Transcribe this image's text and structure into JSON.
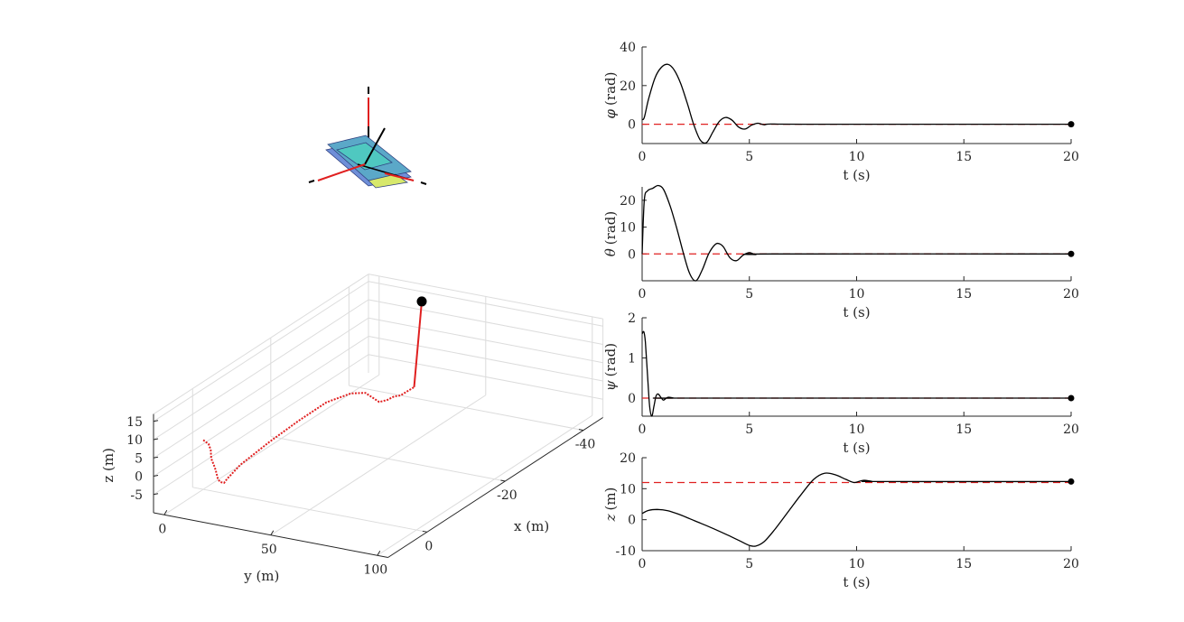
{
  "chart_data": [
    {
      "type": "line",
      "id": "phi",
      "ylabel_symbol": "φ",
      "ylabel_unit": "(rad)",
      "xlabel": "t (s)",
      "xlim": [
        0,
        20
      ],
      "ylim": [
        -10,
        40
      ],
      "xticks": [
        0,
        5,
        10,
        15,
        20
      ],
      "yticks": [
        0,
        20,
        40
      ],
      "reference": 0,
      "end_point": [
        20,
        0
      ],
      "series": [
        {
          "name": "phi",
          "x": [
            0,
            0.1,
            0.3,
            0.6,
            0.9,
            1.2,
            1.5,
            1.8,
            2.1,
            2.4,
            2.7,
            3.0,
            3.3,
            3.6,
            3.9,
            4.2,
            4.5,
            4.8,
            5.1,
            5.4,
            5.7,
            6.0,
            8,
            20
          ],
          "y": [
            2.5,
            3.5,
            13,
            24,
            29.5,
            31,
            28,
            21,
            11,
            0,
            -8,
            -9.5,
            -4,
            1.5,
            3.5,
            2,
            -1.5,
            -2.5,
            -0.5,
            0.5,
            -0.3,
            0.1,
            0,
            0
          ]
        }
      ]
    },
    {
      "type": "line",
      "id": "theta",
      "ylabel_symbol": "θ",
      "ylabel_unit": "(rad)",
      "xlabel": "t (s)",
      "xlim": [
        0,
        20
      ],
      "ylim": [
        -10,
        25
      ],
      "xticks": [
        0,
        5,
        10,
        15,
        20
      ],
      "yticks": [
        0,
        10,
        20
      ],
      "reference": 0,
      "end_point": [
        20,
        0
      ],
      "series": [
        {
          "name": "theta",
          "x": [
            0,
            0.1,
            0.25,
            0.5,
            0.75,
            1.0,
            1.3,
            1.6,
            1.9,
            2.2,
            2.5,
            2.8,
            3.1,
            3.4,
            3.6,
            3.8,
            4.1,
            4.4,
            4.7,
            5.0,
            5.3,
            6,
            20
          ],
          "y": [
            0,
            20,
            23.5,
            24.5,
            25.5,
            24,
            18,
            10,
            1,
            -7,
            -10,
            -6,
            0,
            3.5,
            3.8,
            2.5,
            -1.5,
            -2.5,
            -0.5,
            0.5,
            -0.2,
            0,
            0
          ]
        }
      ]
    },
    {
      "type": "line",
      "id": "psi",
      "ylabel_symbol": "ψ",
      "ylabel_unit": "(rad)",
      "xlabel": "t (s)",
      "xlim": [
        0,
        20
      ],
      "ylim": [
        -0.45,
        2
      ],
      "xticks": [
        0,
        5,
        10,
        15,
        20
      ],
      "yticks": [
        0,
        1,
        2
      ],
      "reference": 0,
      "end_point": [
        20,
        0
      ],
      "series": [
        {
          "name": "psi",
          "x": [
            0,
            0.08,
            0.15,
            0.25,
            0.35,
            0.45,
            0.55,
            0.65,
            0.75,
            0.9,
            1.0,
            1.2,
            1.5,
            2,
            20
          ],
          "y": [
            1.6,
            1.65,
            1.4,
            0.6,
            -0.2,
            -0.45,
            -0.2,
            0.05,
            0.1,
            0.0,
            -0.05,
            0.02,
            0,
            0,
            0
          ]
        }
      ]
    },
    {
      "type": "line",
      "id": "z",
      "ylabel_symbol": "z",
      "ylabel_unit": "(m)",
      "xlabel": "t (s)",
      "xlim": [
        0,
        20
      ],
      "ylim": [
        -10,
        20
      ],
      "xticks": [
        0,
        5,
        10,
        15,
        20
      ],
      "yticks": [
        -10,
        0,
        10,
        20
      ],
      "reference": 12,
      "end_point": [
        20,
        12.3
      ],
      "series": [
        {
          "name": "z",
          "x": [
            0,
            0.3,
            0.7,
            1.2,
            1.8,
            2.5,
            3.2,
            4.0,
            4.6,
            5.0,
            5.3,
            5.7,
            6.2,
            6.8,
            7.4,
            8.0,
            8.5,
            9.0,
            9.5,
            9.9,
            10.3,
            10.7,
            11,
            20
          ],
          "y": [
            2,
            3,
            3.3,
            2.9,
            1.5,
            -0.5,
            -2.5,
            -5,
            -7,
            -8.3,
            -8.5,
            -7,
            -3,
            2.5,
            8,
            13,
            15,
            14.5,
            13,
            12,
            12.7,
            12.4,
            12.3,
            12.3
          ]
        }
      ]
    },
    {
      "type": "scatter3d",
      "id": "trajectory",
      "xlabel": "x (m)",
      "ylabel": "y (m)",
      "zlabel": "z (m)",
      "xticks": [
        0,
        -20,
        -40
      ],
      "yticks": [
        0,
        50,
        100
      ],
      "zticks": [
        -5,
        0,
        5,
        10,
        15
      ],
      "xlim": [
        10,
        -45
      ],
      "ylim": [
        -5,
        105
      ],
      "zlim": [
        -10,
        17
      ],
      "end_point": [
        -45,
        20,
        12.3
      ],
      "series": [
        {
          "name": "path",
          "x": [
            0,
            -0.4,
            -0.8,
            -0.8,
            -0.4,
            -0.6,
            -1,
            -1,
            -1,
            -1.5,
            -2,
            -4,
            -6,
            -8,
            -9.7,
            -10.5,
            -11.5,
            -12.3,
            -13.3,
            -14.2,
            -15.3,
            -16.5,
            -18.5,
            -45
          ],
          "y": [
            0,
            0.5,
            1,
            2,
            3,
            4,
            4,
            5,
            6,
            7,
            7.5,
            10,
            20,
            30,
            40,
            50,
            55,
            60,
            62,
            63.5,
            64.5,
            65,
            65,
            20
          ],
          "z": [
            3.5,
            2.7,
            2,
            0.5,
            -1.5,
            -3.5,
            -5,
            -7.2,
            -8,
            -8.5,
            -7.7,
            -5,
            1,
            6.5,
            11.5,
            14.5,
            14.5,
            12,
            12.1,
            12.6,
            12.2,
            12.4,
            12.3,
            12.3
          ]
        }
      ]
    },
    {
      "type": "3d-model",
      "id": "quadcopter",
      "description_colors": [
        "#5ba8c8",
        "#6f8fd8",
        "#4fc8c0",
        "#d7e86b",
        "#d22020"
      ]
    }
  ],
  "colors": {
    "reference": "#e02020",
    "trajectory": "#e02020",
    "signal": "#000000",
    "axis": "#262626",
    "grid": "#dcdcdc"
  }
}
